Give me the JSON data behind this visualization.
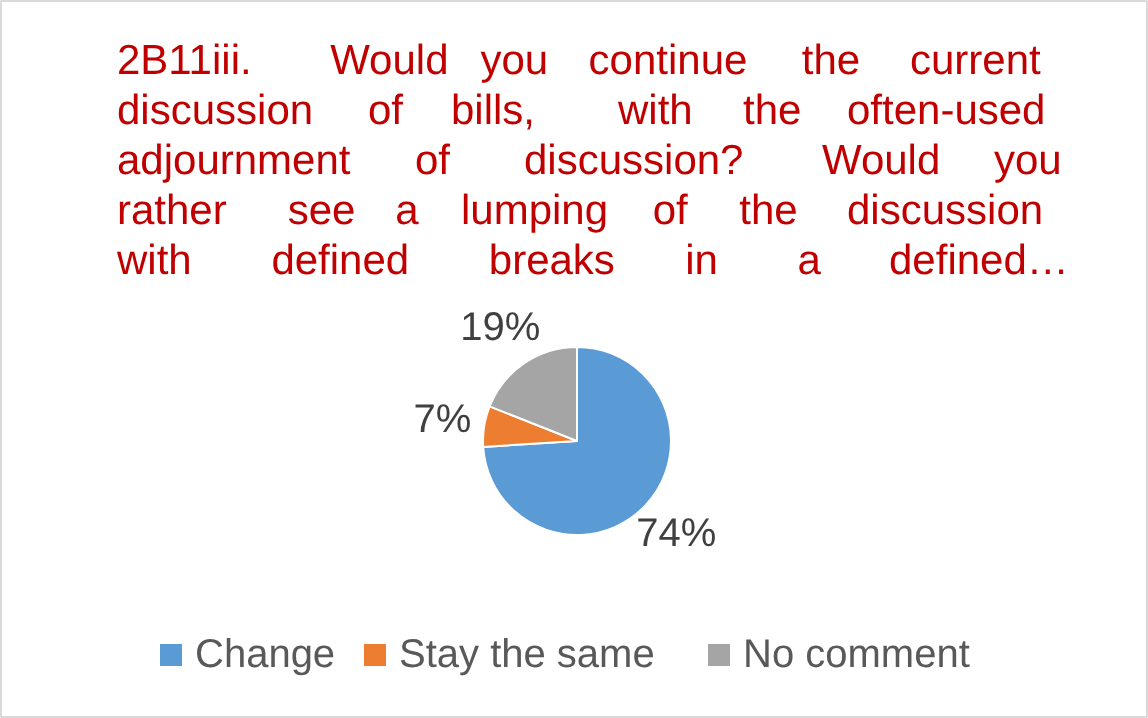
{
  "chart_data": {
    "type": "pie",
    "title": "2B11iii. Would you continue the current discussion of bills, with the often-used adjournment of discussion? Would you rather see a lumping of the discussion with defined breaks in a defined…",
    "categories": [
      "Change",
      "Stay the same",
      "No comment"
    ],
    "values": [
      74,
      7,
      19
    ],
    "colors": [
      "#5b9bd5",
      "#ed7d31",
      "#a5a5a5"
    ],
    "value_labels": [
      "74%",
      "7%",
      "19%"
    ],
    "legend": "bottom"
  }
}
